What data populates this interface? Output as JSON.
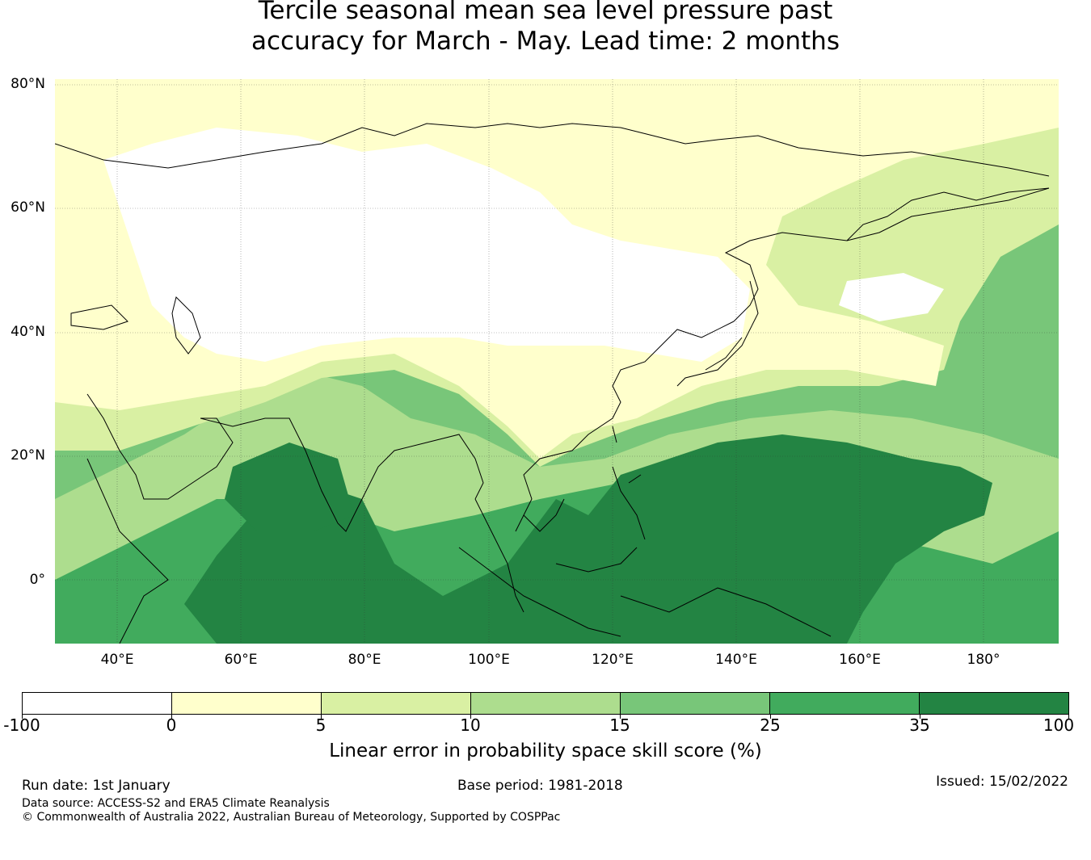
{
  "title": {
    "line1": "Tercile seasonal mean sea level pressure past",
    "line2": "accuracy for March - May. Lead time: 2 months"
  },
  "map": {
    "lat_ticks": [
      "80°N",
      "60°N",
      "40°N",
      "20°N",
      "0°"
    ],
    "lon_ticks": [
      "40°E",
      "60°E",
      "80°E",
      "100°E",
      "120°E",
      "140°E",
      "160°E",
      "180°"
    ]
  },
  "colorbar": {
    "title": "Linear error in probability space skill score (%)",
    "ticks": [
      "-100",
      "0",
      "5",
      "10",
      "15",
      "25",
      "35",
      "100"
    ],
    "colors": [
      "#ffffff",
      "#ffffcc",
      "#d9f0a3",
      "#addd8e",
      "#78c679",
      "#41ab5d",
      "#238443"
    ]
  },
  "footer": {
    "run_date": "Run date: 1st January",
    "base_period": "Base period: 1981-2018",
    "issued": "Issued: 15/02/2022",
    "data_source": "Data source: ACCESS-S2 and ERA5 Climate Reanalysis",
    "copyright": "© Commonwealth of Australia 2022, Australian Bureau of Meteorology, Supported by COSPPac"
  }
}
